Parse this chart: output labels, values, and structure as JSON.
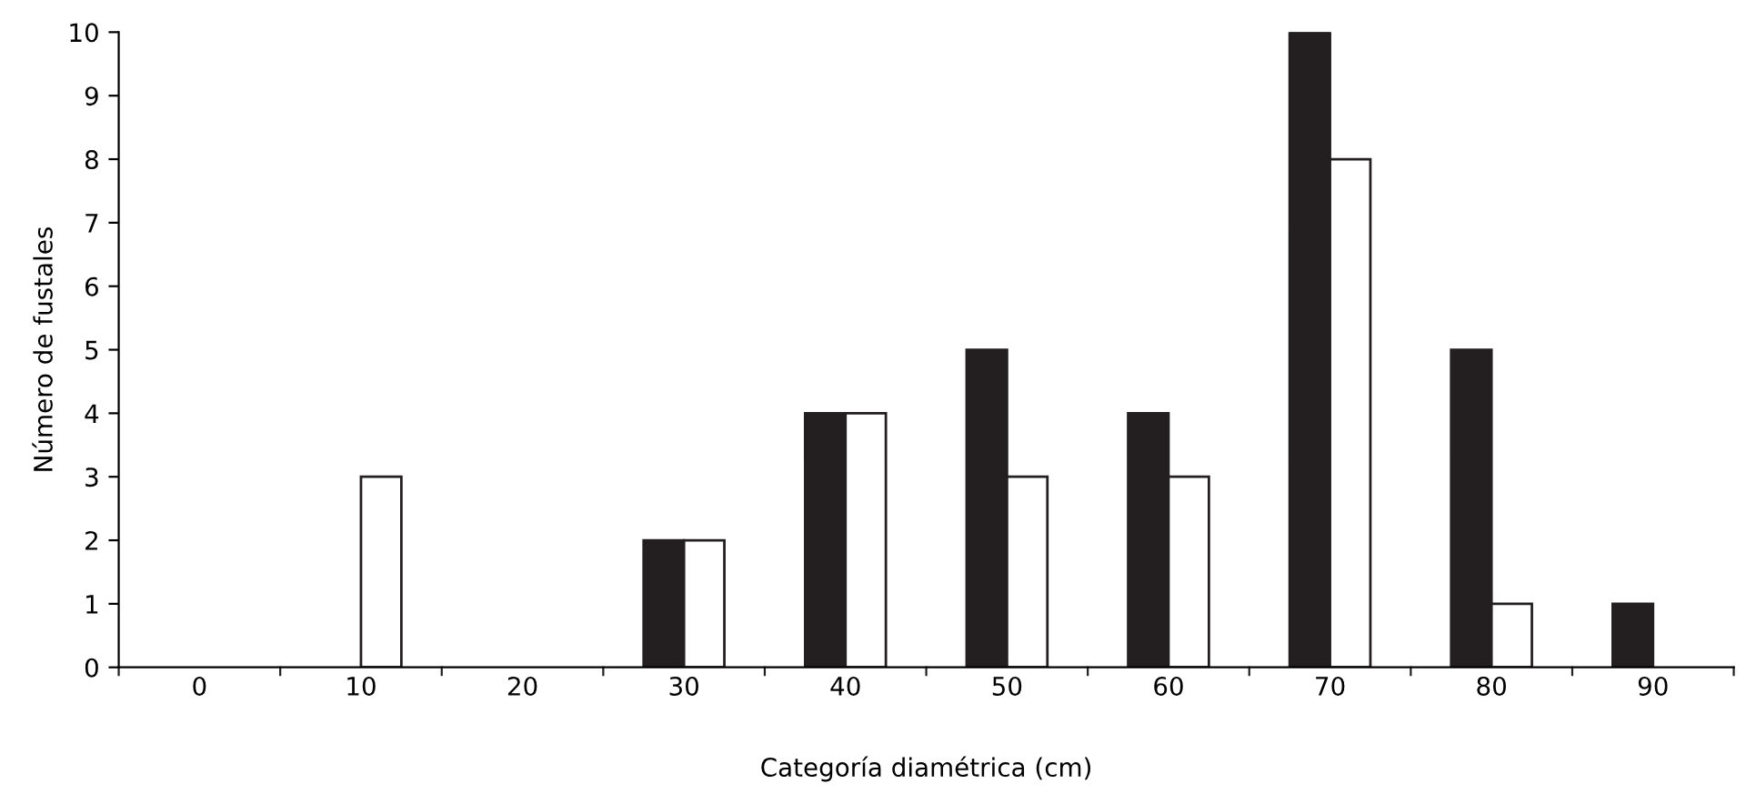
{
  "chart_data": {
    "type": "bar",
    "xlabel": "Categoría diamétrica (cm)",
    "ylabel": "Número de fustales",
    "categories": [
      "0",
      "10",
      "20",
      "30",
      "40",
      "50",
      "60",
      "70",
      "80",
      "90"
    ],
    "series": [
      {
        "color": "#231f20",
        "values": [
          null,
          null,
          null,
          2,
          4,
          5,
          4,
          10,
          5,
          1
        ]
      },
      {
        "color": "#ffffff",
        "values": [
          null,
          3,
          null,
          2,
          4,
          3,
          3,
          8,
          1,
          null
        ]
      }
    ],
    "ylim": [
      0,
      10
    ],
    "yticks": [
      0,
      1,
      2,
      3,
      4,
      5,
      6,
      7,
      8,
      9,
      10
    ],
    "grid": false
  }
}
